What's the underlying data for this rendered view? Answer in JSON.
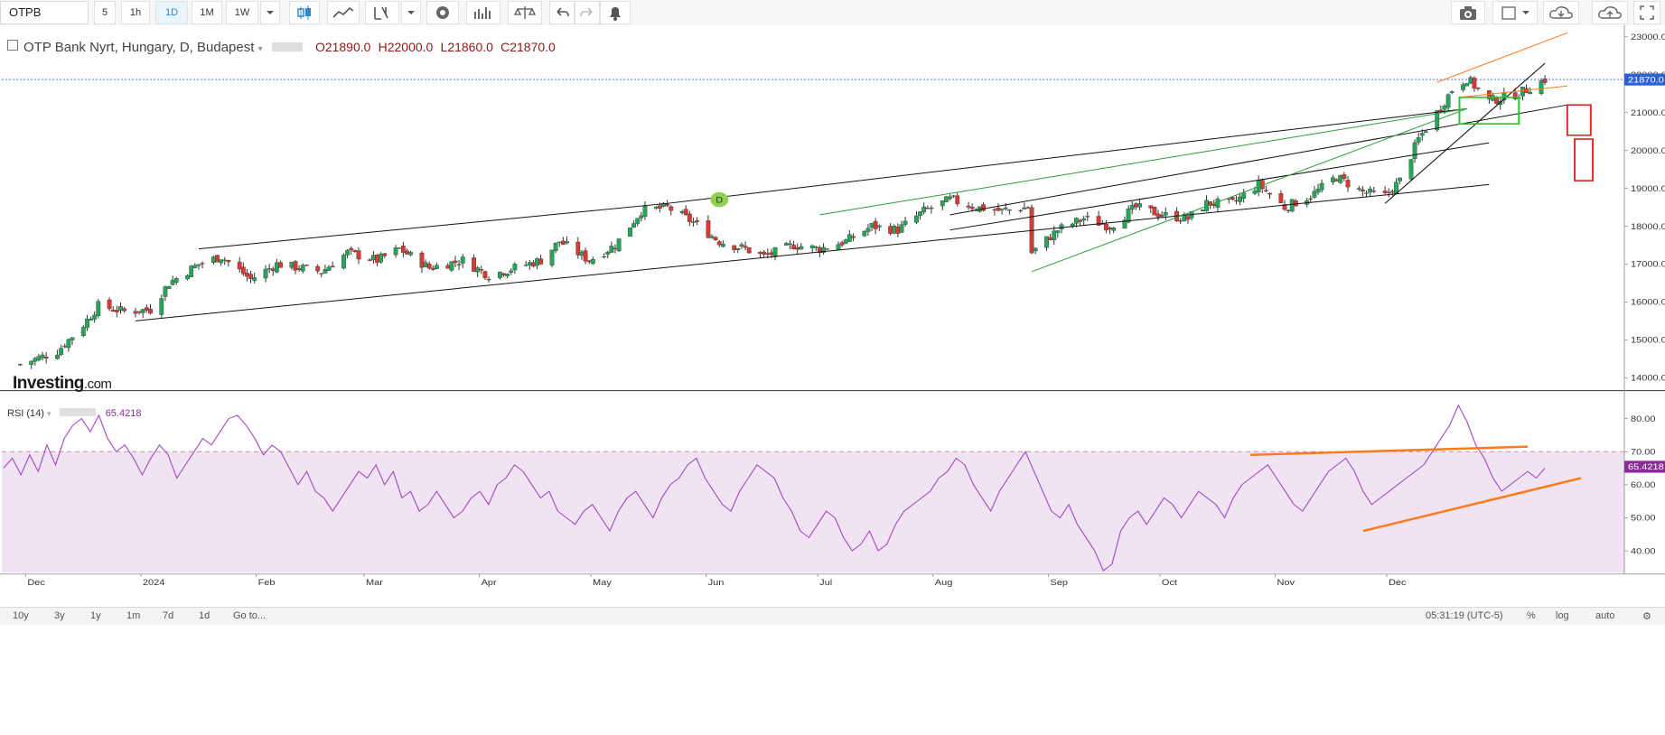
{
  "toolbar": {
    "symbol": "OTPB",
    "intervals": [
      "5",
      "1h",
      "1D",
      "1M",
      "1W"
    ],
    "active_interval": "1D"
  },
  "title": {
    "name": "OTP Bank Nyrt, Hungary, D, Budapest",
    "open_label": "O",
    "open": "21890.0",
    "high_label": "H",
    "high": "22000.0",
    "low_label": "L",
    "low": "21860.0",
    "close_label": "C",
    "close": "21870.0"
  },
  "logo": {
    "main": "Investing",
    "suffix": ".com"
  },
  "marker_label": "D",
  "rsi": {
    "label": "RSI (14)",
    "value": "65.4218"
  },
  "bottom": {
    "ranges": [
      "10y",
      "3y",
      "1y",
      "1m",
      "7d",
      "1d"
    ],
    "goto": "Go to...",
    "time": "05:31:19 (UTC-5)",
    "pct": "%",
    "log": "log",
    "auto": "auto"
  },
  "colors": {
    "up": "#26a65b",
    "down": "#d83a34",
    "rsi": "#a64dc7",
    "rsi_fill": "#f1e4f2",
    "last_price": "#2d62d6"
  },
  "chart_data": [
    {
      "type": "candlestick",
      "title": "OTP Bank Nyrt, Hungary, D, Budapest",
      "x_ticks": [
        "Dec",
        "2024",
        "Feb",
        "Mar",
        "Apr",
        "May",
        "Jun",
        "Jul",
        "Aug",
        "Sep",
        "Oct",
        "Nov",
        "Dec"
      ],
      "y_ticks": [
        14000,
        15000,
        16000,
        17000,
        18000,
        19000,
        20000,
        21000,
        22000,
        23000
      ],
      "y_tick_labels": [
        "14000.0",
        "15000.0",
        "16000.0",
        "17000.0",
        "18000.0",
        "19000.0",
        "20000.0",
        "21000.0",
        "22000.0",
        "23000.0"
      ],
      "ylim": [
        13700,
        23300
      ],
      "last_price": 21870,
      "last_price_label": "21870.0",
      "close_path": [
        {
          "date": "2023-12-01",
          "close": 14350
        },
        {
          "date": "2023-12-11",
          "close": 14700
        },
        {
          "date": "2023-12-18",
          "close": 15400
        },
        {
          "date": "2023-12-22",
          "close": 15900
        },
        {
          "date": "2023-12-29",
          "close": 15750
        },
        {
          "date": "2024-01-05",
          "close": 15800
        },
        {
          "date": "2024-01-10",
          "close": 16500
        },
        {
          "date": "2024-01-18",
          "close": 17000
        },
        {
          "date": "2024-01-24",
          "close": 17200
        },
        {
          "date": "2024-02-01",
          "close": 16600
        },
        {
          "date": "2024-02-08",
          "close": 17000
        },
        {
          "date": "2024-02-20",
          "close": 16800
        },
        {
          "date": "2024-02-27",
          "close": 17300
        },
        {
          "date": "2024-03-06",
          "close": 17100
        },
        {
          "date": "2024-03-12",
          "close": 17400
        },
        {
          "date": "2024-03-20",
          "close": 16900
        },
        {
          "date": "2024-03-29",
          "close": 17100
        },
        {
          "date": "2024-04-05",
          "close": 16700
        },
        {
          "date": "2024-04-12",
          "close": 16900
        },
        {
          "date": "2024-04-19",
          "close": 17100
        },
        {
          "date": "2024-04-24",
          "close": 17600
        },
        {
          "date": "2024-05-02",
          "close": 17100
        },
        {
          "date": "2024-05-09",
          "close": 17500
        },
        {
          "date": "2024-05-16",
          "close": 18400
        },
        {
          "date": "2024-05-23",
          "close": 18500
        },
        {
          "date": "2024-05-30",
          "close": 18100
        },
        {
          "date": "2024-06-06",
          "close": 17600
        },
        {
          "date": "2024-06-13",
          "close": 17400
        },
        {
          "date": "2024-06-18",
          "close": 17200
        },
        {
          "date": "2024-06-26",
          "close": 17500
        },
        {
          "date": "2024-07-03",
          "close": 17400
        },
        {
          "date": "2024-07-10",
          "close": 17600
        },
        {
          "date": "2024-07-17",
          "close": 18000
        },
        {
          "date": "2024-07-24",
          "close": 17900
        },
        {
          "date": "2024-07-31",
          "close": 18400
        },
        {
          "date": "2024-08-07",
          "close": 18700
        },
        {
          "date": "2024-08-14",
          "close": 18500
        },
        {
          "date": "2024-08-21",
          "close": 18400
        },
        {
          "date": "2024-08-28",
          "close": 18500
        },
        {
          "date": "2024-08-29",
          "close": 17300
        },
        {
          "date": "2024-09-05",
          "close": 17900
        },
        {
          "date": "2024-09-12",
          "close": 18200
        },
        {
          "date": "2024-09-19",
          "close": 18000
        },
        {
          "date": "2024-09-26",
          "close": 18500
        },
        {
          "date": "2024-10-03",
          "close": 18300
        },
        {
          "date": "2024-10-10",
          "close": 18200
        },
        {
          "date": "2024-10-15",
          "close": 18600
        },
        {
          "date": "2024-10-22",
          "close": 18600
        },
        {
          "date": "2024-10-29",
          "close": 19100
        },
        {
          "date": "2024-11-05",
          "close": 18500
        },
        {
          "date": "2024-11-12",
          "close": 18800
        },
        {
          "date": "2024-11-19",
          "close": 19300
        },
        {
          "date": "2024-11-26",
          "close": 18900
        },
        {
          "date": "2024-12-02",
          "close": 18800
        },
        {
          "date": "2024-12-06",
          "close": 19200
        },
        {
          "date": "2024-12-11",
          "close": 20300
        },
        {
          "date": "2024-12-16",
          "close": 21000
        },
        {
          "date": "2024-12-20",
          "close": 21600
        },
        {
          "date": "2024-12-24",
          "close": 21900
        },
        {
          "date": "2024-12-30",
          "close": 21300
        },
        {
          "date": "2025-01-07",
          "close": 21500
        },
        {
          "date": "2025-01-14",
          "close": 21870
        }
      ]
    },
    {
      "type": "line",
      "title": "RSI (14)",
      "ylim": [
        33,
        88
      ],
      "y_ticks": [
        40,
        50,
        60,
        70,
        80
      ],
      "y_tick_labels": [
        "40.00",
        "50.00",
        "60.00",
        "70.00",
        "80.00"
      ],
      "overbought": 70,
      "last_value": 65.42,
      "last_value_label": "65.4218",
      "values": [
        65,
        68,
        63,
        69,
        64,
        72,
        66,
        74,
        78,
        80,
        76,
        81,
        74,
        70,
        72,
        68,
        63,
        68,
        72,
        69,
        62,
        66,
        70,
        74,
        72,
        76,
        80,
        81,
        78,
        74,
        69,
        72,
        70,
        65,
        60,
        64,
        58,
        56,
        52,
        56,
        60,
        64,
        62,
        66,
        60,
        64,
        56,
        58,
        52,
        54,
        58,
        54,
        50,
        52,
        56,
        58,
        54,
        60,
        62,
        66,
        64,
        60,
        56,
        58,
        52,
        50,
        48,
        52,
        54,
        50,
        46,
        52,
        56,
        58,
        54,
        50,
        56,
        60,
        62,
        66,
        68,
        62,
        58,
        54,
        52,
        58,
        62,
        66,
        64,
        62,
        56,
        52,
        46,
        44,
        48,
        52,
        50,
        44,
        40,
        42,
        46,
        40,
        42,
        48,
        52,
        54,
        56,
        58,
        62,
        64,
        68,
        66,
        60,
        56,
        52,
        58,
        62,
        66,
        70,
        64,
        58,
        52,
        50,
        54,
        48,
        44,
        40,
        34,
        36,
        46,
        50,
        52,
        48,
        52,
        56,
        54,
        50,
        54,
        58,
        56,
        54,
        50,
        56,
        60,
        62,
        64,
        66,
        62,
        58,
        54,
        52,
        56,
        60,
        64,
        66,
        68,
        64,
        58,
        54,
        56,
        58,
        60,
        62,
        64,
        66,
        70,
        74,
        78,
        84,
        79,
        72,
        68,
        62,
        58,
        60,
        62,
        64,
        62,
        65
      ]
    }
  ]
}
